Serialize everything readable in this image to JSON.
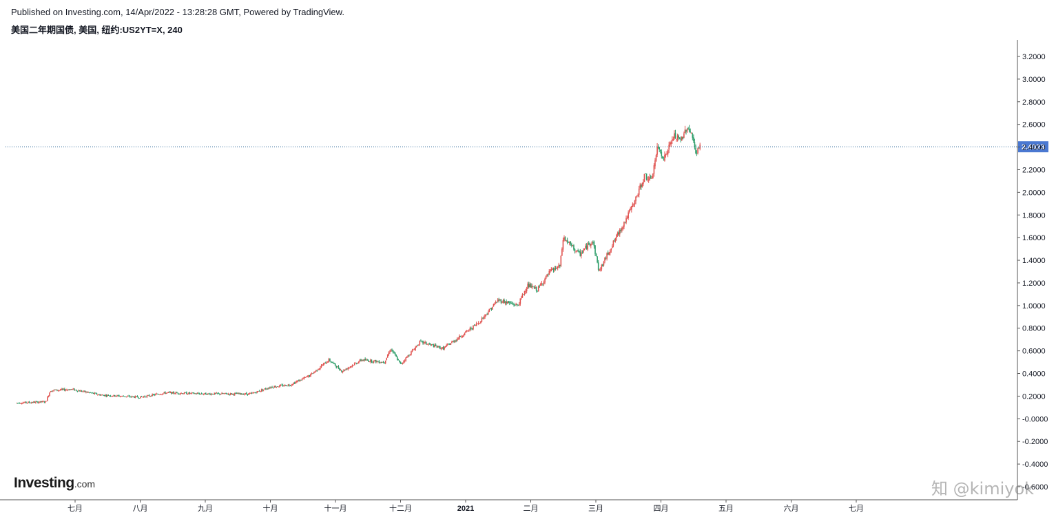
{
  "header": {
    "published": "Published on Investing.com, 14/Apr/2022 - 13:28:28 GMT, Powered by TradingView.",
    "symbol_title": "美国二年期国债, 美国, 纽约:US2YT=X, 240"
  },
  "branding": {
    "logo_main": "Investing",
    "logo_suffix": ".com",
    "watermark": "知 @kimiyok"
  },
  "colors": {
    "up": "#e0524f",
    "down": "#2e9e6a",
    "price_line": "#1c5c8f",
    "price_label_bg": "#4a78d1",
    "axis": "#555555"
  },
  "chart_data": {
    "type": "candlestick",
    "title": "美国二年期国债, 美国, 纽约:US2YT=X, 240",
    "ylim": [
      -0.6,
      3.3
    ],
    "y_ticks": [
      "3.2000",
      "3.0000",
      "2.8000",
      "2.6000",
      "2.4000",
      "2.2000",
      "2.0000",
      "1.8000",
      "1.6000",
      "1.4000",
      "1.2000",
      "1.0000",
      "0.8000",
      "0.6000",
      "0.4000",
      "0.2000",
      "-0.0000",
      "-0.2000",
      "-0.4000",
      "-0.6000"
    ],
    "x_ticks": [
      {
        "label": "七月",
        "month_index": 1
      },
      {
        "label": "八月",
        "month_index": 2
      },
      {
        "label": "九月",
        "month_index": 3
      },
      {
        "label": "十月",
        "month_index": 4
      },
      {
        "label": "十一月",
        "month_index": 5
      },
      {
        "label": "十二月",
        "month_index": 6
      },
      {
        "label": "2021",
        "month_index": 7
      },
      {
        "label": "二月",
        "month_index": 8
      },
      {
        "label": "三月",
        "month_index": 9
      },
      {
        "label": "四月",
        "month_index": 10
      },
      {
        "label": "五月",
        "month_index": 11
      },
      {
        "label": "六月",
        "month_index": 12
      },
      {
        "label": "七月",
        "month_index": 13
      }
    ],
    "x_start_month_index": 0.1,
    "x_end_month_index": 13.35,
    "last_price": 2.4023,
    "last_price_label": "2.4023",
    "series_key_points": [
      {
        "m": 0.1,
        "v": 0.14
      },
      {
        "m": 0.55,
        "v": 0.15
      },
      {
        "m": 0.62,
        "v": 0.25
      },
      {
        "m": 0.95,
        "v": 0.26
      },
      {
        "m": 1.4,
        "v": 0.21
      },
      {
        "m": 2.0,
        "v": 0.19
      },
      {
        "m": 2.4,
        "v": 0.23
      },
      {
        "m": 3.0,
        "v": 0.22
      },
      {
        "m": 3.7,
        "v": 0.22
      },
      {
        "m": 4.0,
        "v": 0.28
      },
      {
        "m": 4.3,
        "v": 0.3
      },
      {
        "m": 4.6,
        "v": 0.38
      },
      {
        "m": 4.9,
        "v": 0.52
      },
      {
        "m": 5.1,
        "v": 0.42
      },
      {
        "m": 5.4,
        "v": 0.52
      },
      {
        "m": 5.75,
        "v": 0.5
      },
      {
        "m": 5.85,
        "v": 0.62
      },
      {
        "m": 6.0,
        "v": 0.48
      },
      {
        "m": 6.3,
        "v": 0.68
      },
      {
        "m": 6.65,
        "v": 0.62
      },
      {
        "m": 6.95,
        "v": 0.74
      },
      {
        "m": 7.2,
        "v": 0.85
      },
      {
        "m": 7.5,
        "v": 1.05
      },
      {
        "m": 7.8,
        "v": 1.0
      },
      {
        "m": 7.95,
        "v": 1.18
      },
      {
        "m": 8.1,
        "v": 1.14
      },
      {
        "m": 8.3,
        "v": 1.3
      },
      {
        "m": 8.45,
        "v": 1.35
      },
      {
        "m": 8.5,
        "v": 1.6
      },
      {
        "m": 8.75,
        "v": 1.45
      },
      {
        "m": 8.95,
        "v": 1.58
      },
      {
        "m": 9.05,
        "v": 1.3
      },
      {
        "m": 9.2,
        "v": 1.48
      },
      {
        "m": 9.45,
        "v": 1.75
      },
      {
        "m": 9.6,
        "v": 1.92
      },
      {
        "m": 9.75,
        "v": 2.15
      },
      {
        "m": 9.85,
        "v": 2.1
      },
      {
        "m": 9.95,
        "v": 2.4
      },
      {
        "m": 10.05,
        "v": 2.3
      },
      {
        "m": 10.2,
        "v": 2.5
      },
      {
        "m": 10.3,
        "v": 2.45
      },
      {
        "m": 10.4,
        "v": 2.58
      },
      {
        "m": 10.47,
        "v": 2.52
      },
      {
        "m": 10.53,
        "v": 2.35
      },
      {
        "m": 10.6,
        "v": 2.4
      }
    ]
  }
}
